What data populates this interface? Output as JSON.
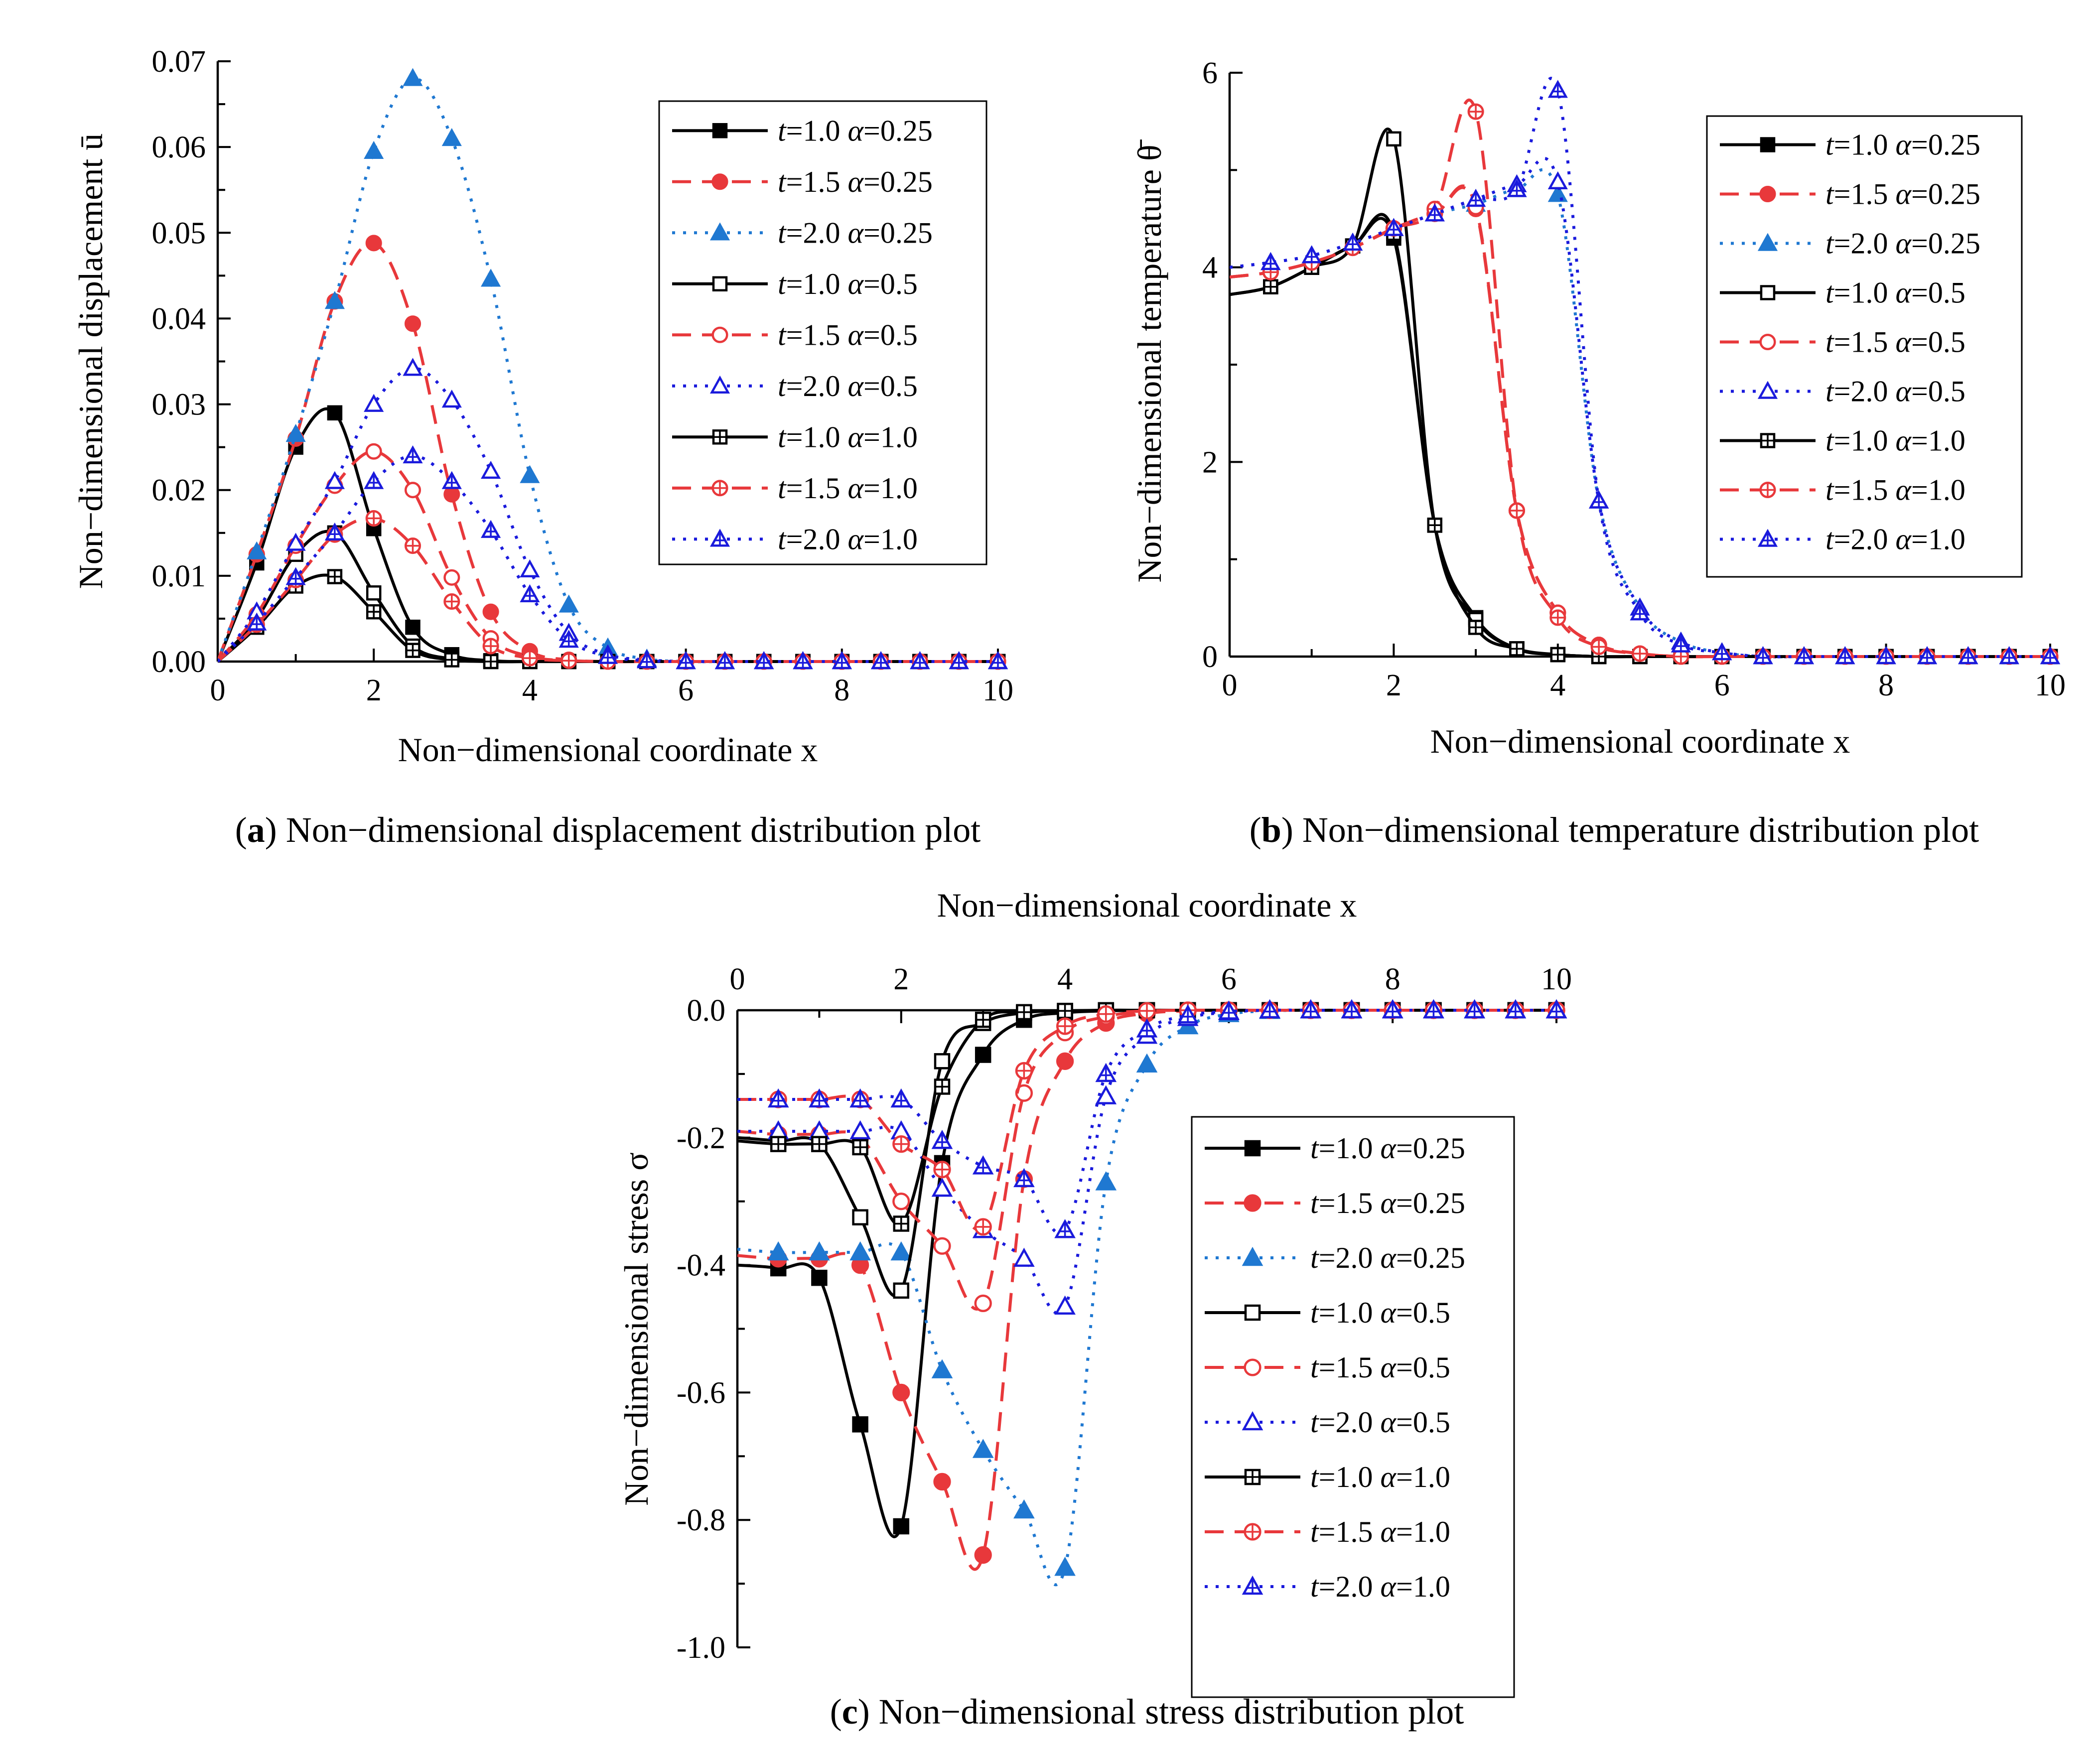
{
  "figure": {
    "legend_entries": [
      {
        "t": "1.0",
        "alpha": "0.25"
      },
      {
        "t": "1.5",
        "alpha": "0.25"
      },
      {
        "t": "2.0",
        "alpha": "0.25"
      },
      {
        "t": "1.0",
        "alpha": "0.5"
      },
      {
        "t": "1.5",
        "alpha": "0.5"
      },
      {
        "t": "2.0",
        "alpha": "0.5"
      },
      {
        "t": "1.0",
        "alpha": "1.0"
      },
      {
        "t": "1.5",
        "alpha": "1.0"
      },
      {
        "t": "2.0",
        "alpha": "1.0"
      }
    ],
    "series_styles": [
      {
        "color": "#000000",
        "dash": "solid",
        "marker": "square-filled"
      },
      {
        "color": "#e8383b",
        "dash": "dashed",
        "marker": "circle-filled"
      },
      {
        "color": "#1f78d1",
        "dash": "dotted",
        "marker": "triangle-filled"
      },
      {
        "color": "#000000",
        "dash": "solid",
        "marker": "square-open"
      },
      {
        "color": "#e8383b",
        "dash": "dashed",
        "marker": "circle-open"
      },
      {
        "color": "#1a1adc",
        "dash": "dotted",
        "marker": "triangle-open"
      },
      {
        "color": "#000000",
        "dash": "solid",
        "marker": "square-cross"
      },
      {
        "color": "#e8383b",
        "dash": "dashed",
        "marker": "circle-cross"
      },
      {
        "color": "#1a1adc",
        "dash": "dotted",
        "marker": "triangle-cross"
      }
    ]
  },
  "chart_data": [
    {
      "id": "a",
      "type": "line",
      "caption_letter": "a",
      "caption_text": "Non−dimensional displacement distribution plot",
      "xlabel": "Non−dimensional coordinate x",
      "ylabel": "Non−dimensional displacement ū",
      "xlim": [
        0,
        10
      ],
      "ylim": [
        0,
        0.07
      ],
      "xticks": [
        "0",
        "2",
        "4",
        "6",
        "8",
        "10"
      ],
      "yticks": [
        "0.00",
        "0.01",
        "0.02",
        "0.03",
        "0.04",
        "0.05",
        "0.06",
        "0.07"
      ],
      "legend": "top-right",
      "x": [
        0,
        0.5,
        1.0,
        1.5,
        2.0,
        2.5,
        3.0,
        3.5,
        4.0,
        4.5,
        5.0,
        5.5,
        6.0,
        6.5,
        7.0,
        7.5,
        8.0,
        8.5,
        9.0,
        9.5,
        10.0
      ],
      "series": [
        {
          "name": "t=1.0 α=0.25",
          "values": [
            0,
            0.0115,
            0.025,
            0.029,
            0.0155,
            0.004,
            0.0008,
            0.0001,
            0,
            0,
            0,
            0,
            0,
            0,
            0,
            0,
            0,
            0,
            0,
            0,
            0
          ]
        },
        {
          "name": "t=1.5 α=0.25",
          "values": [
            0,
            0.0125,
            0.026,
            0.042,
            0.0488,
            0.0394,
            0.0195,
            0.0058,
            0.0012,
            0.0002,
            0,
            0,
            0,
            0,
            0,
            0,
            0,
            0,
            0,
            0,
            0
          ]
        },
        {
          "name": "t=2.0 α=0.25",
          "values": [
            0,
            0.0128,
            0.0265,
            0.042,
            0.0595,
            0.068,
            0.061,
            0.0446,
            0.0217,
            0.0066,
            0.0016,
            0.0003,
            0,
            0,
            0,
            0,
            0,
            0,
            0,
            0,
            0
          ]
        },
        {
          "name": "t=1.0 α=0.5",
          "values": [
            0,
            0.005,
            0.0125,
            0.015,
            0.008,
            0.0018,
            0.0003,
            0,
            0,
            0,
            0,
            0,
            0,
            0,
            0,
            0,
            0,
            0,
            0,
            0,
            0
          ]
        },
        {
          "name": "t=1.5 α=0.5",
          "values": [
            0,
            0.0055,
            0.0135,
            0.0205,
            0.0245,
            0.02,
            0.0098,
            0.0027,
            0.0006,
            0.0001,
            0,
            0,
            0,
            0,
            0,
            0,
            0,
            0,
            0,
            0,
            0
          ]
        },
        {
          "name": "t=2.0 α=0.5",
          "values": [
            0,
            0.0058,
            0.0138,
            0.021,
            0.03,
            0.0342,
            0.0305,
            0.0222,
            0.0107,
            0.0033,
            0.0008,
            0.0002,
            0,
            0,
            0,
            0,
            0,
            0,
            0,
            0,
            0
          ]
        },
        {
          "name": "t=1.0 α=1.0",
          "values": [
            0,
            0.004,
            0.0088,
            0.0099,
            0.0058,
            0.0013,
            0.0002,
            0,
            0,
            0,
            0,
            0,
            0,
            0,
            0,
            0,
            0,
            0,
            0,
            0,
            0
          ]
        },
        {
          "name": "t=1.5 α=1.0",
          "values": [
            0,
            0.0043,
            0.0095,
            0.0148,
            0.0167,
            0.0135,
            0.007,
            0.0018,
            0.0004,
            0.0001,
            0,
            0,
            0,
            0,
            0,
            0,
            0,
            0,
            0,
            0,
            0
          ]
        },
        {
          "name": "t=2.0 α=1.0",
          "values": [
            0,
            0.0045,
            0.0098,
            0.015,
            0.021,
            0.024,
            0.021,
            0.0153,
            0.0078,
            0.0025,
            0.0006,
            0.0001,
            0,
            0,
            0,
            0,
            0,
            0,
            0,
            0,
            0
          ]
        }
      ]
    },
    {
      "id": "b",
      "type": "line",
      "caption_letter": "b",
      "caption_text": "Non−dimensional temperature distribution plot",
      "xlabel": "Non−dimensional coordinate x",
      "ylabel": "Non−dimensional temperature θ̄",
      "xlim": [
        0,
        10
      ],
      "ylim": [
        0,
        6
      ],
      "xticks": [
        "0",
        "2",
        "4",
        "6",
        "8",
        "10"
      ],
      "yticks": [
        "0",
        "2",
        "4",
        "6"
      ],
      "legend": "top-right",
      "x": [
        0,
        0.5,
        1.0,
        1.5,
        2.0,
        2.5,
        3.0,
        3.5,
        4.0,
        4.5,
        5.0,
        5.5,
        6.0,
        6.5,
        7.0,
        7.5,
        8.0,
        8.5,
        9.0,
        9.5,
        10.0
      ],
      "series": [
        {
          "name": "t=1.0 α=0.25",
          "values": [
            3.72,
            3.8,
            4.0,
            4.22,
            4.3,
            1.35,
            0.4,
            0.08,
            0.02,
            0,
            0,
            0,
            0,
            0,
            0,
            0,
            0,
            0,
            0,
            0,
            0
          ]
        },
        {
          "name": "t=1.5 α=0.25",
          "values": [
            3.9,
            3.95,
            4.05,
            4.2,
            4.4,
            4.55,
            4.6,
            1.5,
            0.45,
            0.12,
            0.03,
            0,
            0,
            0,
            0,
            0,
            0,
            0,
            0,
            0,
            0
          ]
        },
        {
          "name": "t=2.0 α=0.25",
          "values": [
            4.0,
            4.05,
            4.12,
            4.25,
            4.4,
            4.55,
            4.65,
            4.8,
            4.75,
            1.6,
            0.5,
            0.15,
            0.04,
            0,
            0,
            0,
            0,
            0,
            0,
            0,
            0
          ]
        },
        {
          "name": "t=1.0 α=0.5",
          "values": [
            3.72,
            3.8,
            4.0,
            4.22,
            5.32,
            1.35,
            0.38,
            0.08,
            0.02,
            0,
            0,
            0,
            0,
            0,
            0,
            0,
            0,
            0,
            0,
            0,
            0
          ]
        },
        {
          "name": "t=1.5 α=0.5",
          "values": [
            3.9,
            3.95,
            4.05,
            4.2,
            4.4,
            4.55,
            4.62,
            1.5,
            0.45,
            0.12,
            0.03,
            0,
            0,
            0,
            0,
            0,
            0,
            0,
            0,
            0,
            0
          ]
        },
        {
          "name": "t=2.0 α=0.5",
          "values": [
            4.0,
            4.05,
            4.12,
            4.25,
            4.4,
            4.55,
            4.7,
            4.85,
            4.88,
            1.6,
            0.5,
            0.15,
            0.04,
            0,
            0,
            0,
            0,
            0,
            0,
            0,
            0
          ]
        },
        {
          "name": "t=1.0 α=1.0",
          "values": [
            3.72,
            3.8,
            4.0,
            4.22,
            4.35,
            1.35,
            0.3,
            0.08,
            0.02,
            0,
            0,
            0,
            0,
            0,
            0,
            0,
            0,
            0,
            0,
            0,
            0
          ]
        },
        {
          "name": "t=1.5 α=1.0",
          "values": [
            3.9,
            3.95,
            4.05,
            4.2,
            4.4,
            4.6,
            5.6,
            1.5,
            0.4,
            0.1,
            0.03,
            0,
            0,
            0,
            0,
            0,
            0,
            0,
            0,
            0,
            0
          ]
        },
        {
          "name": "t=2.0 α=1.0",
          "values": [
            4.0,
            4.05,
            4.12,
            4.25,
            4.4,
            4.55,
            4.7,
            4.8,
            5.82,
            1.6,
            0.45,
            0.12,
            0.04,
            0,
            0,
            0,
            0,
            0,
            0,
            0,
            0
          ]
        }
      ]
    },
    {
      "id": "c",
      "type": "line",
      "caption_letter": "c",
      "caption_text": "Non−dimensional stress distribution plot",
      "xlabel": "Non−dimensional coordinate x",
      "xlabel_position": "top",
      "ylabel": "Non−dimensional stress σ",
      "xlim": [
        0,
        10
      ],
      "ylim": [
        -1.0,
        0.0
      ],
      "xticks": [
        "0",
        "2",
        "4",
        "6",
        "8",
        "10"
      ],
      "yticks": [
        "-1.0",
        "-0.8",
        "-0.6",
        "-0.4",
        "-0.2",
        "0.0"
      ],
      "legend": "bottom-right",
      "x": [
        0,
        0.5,
        1.0,
        1.5,
        2.0,
        2.5,
        3.0,
        3.5,
        4.0,
        4.5,
        5.0,
        5.5,
        6.0,
        6.5,
        7.0,
        7.5,
        8.0,
        8.5,
        9.0,
        9.5,
        10.0
      ],
      "series": [
        {
          "name": "t=1.0 α=0.25",
          "values": [
            -0.4,
            -0.405,
            -0.42,
            -0.65,
            -0.81,
            -0.24,
            -0.07,
            -0.015,
            -0.004,
            -0.001,
            0,
            0,
            0,
            0,
            0,
            0,
            0,
            0,
            0,
            0,
            0
          ]
        },
        {
          "name": "t=1.5 α=0.25",
          "values": [
            -0.385,
            -0.39,
            -0.39,
            -0.4,
            -0.6,
            -0.74,
            -0.855,
            -0.265,
            -0.08,
            -0.02,
            -0.005,
            -0.001,
            0,
            0,
            0,
            0,
            0,
            0,
            0,
            0,
            0
          ]
        },
        {
          "name": "t=2.0 α=0.25",
          "values": [
            -0.375,
            -0.38,
            -0.38,
            -0.38,
            -0.38,
            -0.565,
            -0.69,
            -0.785,
            -0.875,
            -0.27,
            -0.085,
            -0.025,
            -0.006,
            -0.001,
            0,
            0,
            0,
            0,
            0,
            0,
            0
          ]
        },
        {
          "name": "t=1.0 α=0.5",
          "values": [
            -0.2,
            -0.205,
            -0.21,
            -0.325,
            -0.44,
            -0.08,
            -0.02,
            -0.004,
            -0.001,
            0,
            0,
            0,
            0,
            0,
            0,
            0,
            0,
            0,
            0,
            0,
            0
          ]
        },
        {
          "name": "t=1.5 α=0.5",
          "values": [
            -0.19,
            -0.195,
            -0.195,
            -0.2,
            -0.3,
            -0.37,
            -0.46,
            -0.13,
            -0.035,
            -0.01,
            -0.002,
            0,
            0,
            0,
            0,
            0,
            0,
            0,
            0,
            0,
            0
          ]
        },
        {
          "name": "t=2.0 α=0.5",
          "values": [
            -0.19,
            -0.19,
            -0.19,
            -0.19,
            -0.19,
            -0.28,
            -0.345,
            -0.39,
            -0.465,
            -0.135,
            -0.04,
            -0.012,
            -0.003,
            0,
            0,
            0,
            0,
            0,
            0,
            0,
            0
          ]
        },
        {
          "name": "t=1.0 α=1.0",
          "values": [
            -0.205,
            -0.21,
            -0.21,
            -0.215,
            -0.335,
            -0.12,
            -0.015,
            -0.003,
            -0.001,
            0,
            0,
            0,
            0,
            0,
            0,
            0,
            0,
            0,
            0,
            0,
            0
          ]
        },
        {
          "name": "t=1.5 α=1.0",
          "values": [
            -0.14,
            -0.14,
            -0.14,
            -0.14,
            -0.21,
            -0.25,
            -0.34,
            -0.095,
            -0.025,
            -0.006,
            -0.001,
            0,
            0,
            0,
            0,
            0,
            0,
            0,
            0,
            0,
            0
          ]
        },
        {
          "name": "t=2.0 α=1.0",
          "values": [
            -0.14,
            -0.14,
            -0.14,
            -0.14,
            -0.14,
            -0.205,
            -0.245,
            -0.265,
            -0.345,
            -0.1,
            -0.03,
            -0.008,
            -0.002,
            0,
            0,
            0,
            0,
            0,
            0,
            0,
            0
          ]
        }
      ]
    }
  ]
}
